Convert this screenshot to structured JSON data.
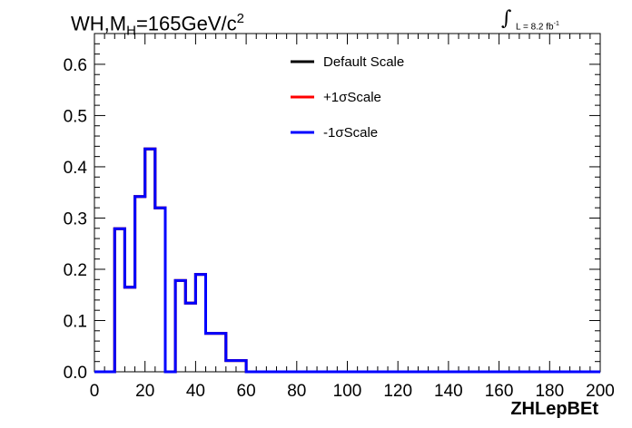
{
  "title": {
    "prefix": "WH,M",
    "subscript": "H",
    "main": "=165GeV/c",
    "superscript": "2"
  },
  "luminosity": {
    "integral": "∫",
    "text": "L = 8.2 fb",
    "exponent": "-1"
  },
  "chart_data": {
    "type": "line",
    "title": "WH,M_H=165GeV/c^2",
    "xlabel": "ZHLepBEt",
    "ylabel": "",
    "xlim": [
      0,
      200
    ],
    "ylim": [
      0,
      0.66
    ],
    "x_ticks": [
      "0",
      "20",
      "40",
      "60",
      "80",
      "100",
      "120",
      "140",
      "160",
      "180",
      "200"
    ],
    "y_ticks": [
      "0.0",
      "0.1",
      "0.2",
      "0.3",
      "0.4",
      "0.5",
      "0.6"
    ],
    "legend_position": "top-center",
    "bin_edges": [
      0,
      8,
      12,
      16,
      20,
      24,
      28,
      32,
      36,
      40,
      44,
      48,
      52,
      56,
      60,
      200
    ],
    "series": [
      {
        "name": "Default Scale",
        "color": "#000000",
        "values": [
          0,
          0.279,
          0.165,
          0.342,
          0.435,
          0.32,
          0,
          0.178,
          0.134,
          0.19,
          0.075,
          0.075,
          0.022,
          0.022,
          0
        ]
      },
      {
        "name": "+1σScale",
        "color": "#ff0000",
        "values": [
          0,
          0.279,
          0.165,
          0.342,
          0.435,
          0.32,
          0,
          0.178,
          0.134,
          0.19,
          0.075,
          0.075,
          0.022,
          0.022,
          0
        ]
      },
      {
        "name": "-1σScale",
        "color": "#0000ff",
        "values": [
          0,
          0.279,
          0.165,
          0.342,
          0.435,
          0.32,
          0,
          0.178,
          0.134,
          0.19,
          0.075,
          0.075,
          0.022,
          0.022,
          0
        ]
      }
    ]
  }
}
